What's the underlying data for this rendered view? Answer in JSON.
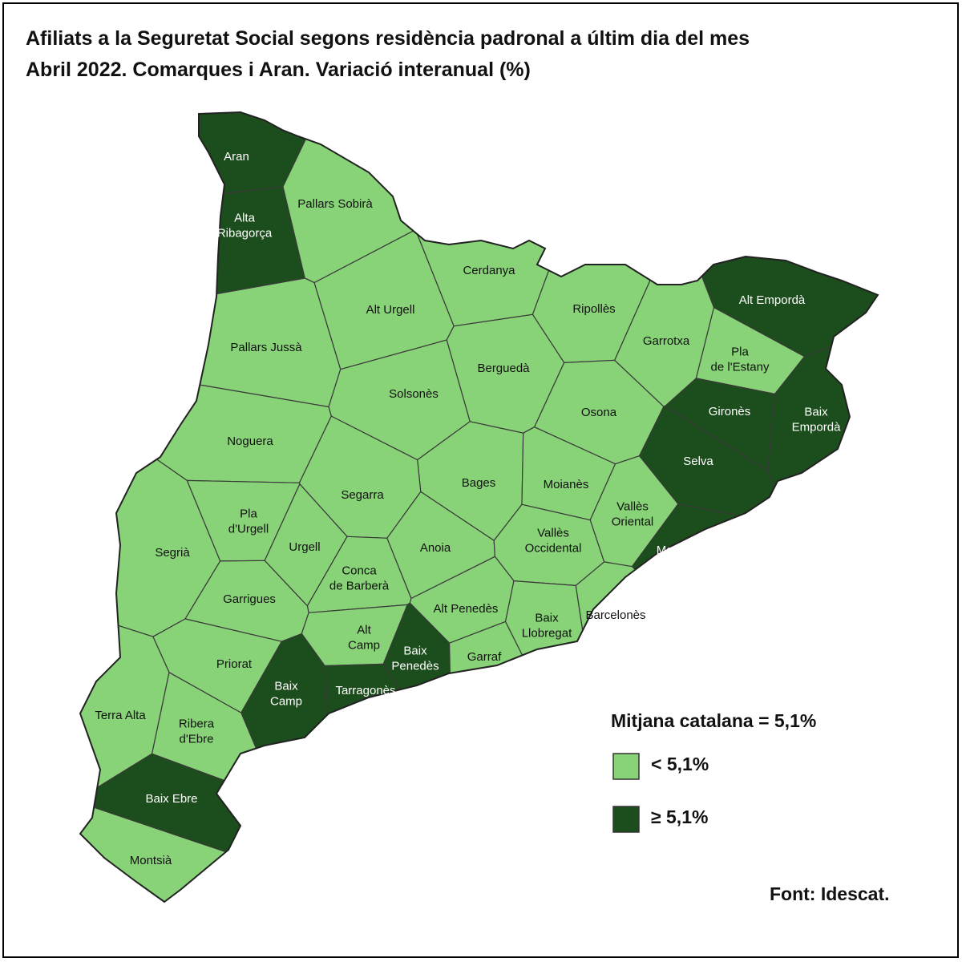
{
  "header": {
    "title_lines": [
      "Afiliats a la Seguretat Social segons residència padronal a últim dia del mes",
      "Abril 2022. Comarques i Aran. Variació interanual (%)"
    ]
  },
  "regions": [
    {
      "label": [
        "Aran"
      ],
      "color": "#1c4d1c"
    },
    {
      "label": [
        "Alta",
        "Ribagorça"
      ],
      "color": "#1c4d1c"
    },
    {
      "label": [
        "Pallars Sobirà"
      ],
      "color": "#88d377"
    },
    {
      "label": [
        "Cerdanya"
      ],
      "color": "#88d377"
    },
    {
      "label": [
        "Alt Urgell"
      ],
      "color": "#88d377"
    },
    {
      "label": [
        "Ripollès"
      ],
      "color": "#88d377"
    },
    {
      "label": [
        "Alt Empordà"
      ],
      "color": "#1c4d1c"
    },
    {
      "label": [
        "Pallars Jussà"
      ],
      "color": "#88d377"
    },
    {
      "label": [
        "Garrotxa"
      ],
      "color": "#88d377"
    },
    {
      "label": [
        "Pla",
        "de l'Estany"
      ],
      "color": "#88d377"
    },
    {
      "label": [
        "Berguedà"
      ],
      "color": "#88d377"
    },
    {
      "label": [
        "Solsonès"
      ],
      "color": "#88d377"
    },
    {
      "label": [
        "Gironès"
      ],
      "color": "#1c4d1c"
    },
    {
      "label": [
        "Baix",
        "Empordà"
      ],
      "color": "#1c4d1c"
    },
    {
      "label": [
        "Osona"
      ],
      "color": "#88d377"
    },
    {
      "label": [
        "Noguera"
      ],
      "color": "#88d377"
    },
    {
      "label": [
        "Selva"
      ],
      "color": "#1c4d1c"
    },
    {
      "label": [
        "Bages"
      ],
      "color": "#88d377"
    },
    {
      "label": [
        "Moianès"
      ],
      "color": "#88d377"
    },
    {
      "label": [
        "Segarra"
      ],
      "color": "#88d377"
    },
    {
      "label": [
        "Pla",
        "d'Urgell"
      ],
      "color": "#88d377"
    },
    {
      "label": [
        "Vallès",
        "Oriental"
      ],
      "color": "#88d377"
    },
    {
      "label": [
        "Segrià"
      ],
      "color": "#88d377"
    },
    {
      "label": [
        "Urgell"
      ],
      "color": "#88d377"
    },
    {
      "label": [
        "Anoia"
      ],
      "color": "#88d377"
    },
    {
      "label": [
        "Vallès",
        "Occidental"
      ],
      "color": "#88d377"
    },
    {
      "label": [
        "Maresme"
      ],
      "color": "#1c4d1c"
    },
    {
      "label": [
        "Conca",
        "de Barberà"
      ],
      "color": "#88d377"
    },
    {
      "label": [
        "Garrigues"
      ],
      "color": "#88d377"
    },
    {
      "label": [
        "Alt Penedès"
      ],
      "color": "#88d377"
    },
    {
      "label": [
        "Baix",
        "Llobregat"
      ],
      "color": "#88d377"
    },
    {
      "label": [
        "Barcelonès"
      ],
      "color": "#88d377"
    },
    {
      "label": [
        "Alt",
        "Camp"
      ],
      "color": "#88d377"
    },
    {
      "label": [
        "Baix",
        "Penedès"
      ],
      "color": "#1c4d1c"
    },
    {
      "label": [
        "Garraf"
      ],
      "color": "#88d377"
    },
    {
      "label": [
        "Priorat"
      ],
      "color": "#88d377"
    },
    {
      "label": [
        "Baix",
        "Camp"
      ],
      "color": "#1c4d1c"
    },
    {
      "label": [
        "Tarragonès"
      ],
      "color": "#1c4d1c"
    },
    {
      "label": [
        "Terra Alta"
      ],
      "color": "#88d377"
    },
    {
      "label": [
        "Ribera",
        "d'Ebre"
      ],
      "color": "#88d377"
    },
    {
      "label": [
        "Baix Ebre"
      ],
      "color": "#1c4d1c"
    },
    {
      "label": [
        "Montsià"
      ],
      "color": "#88d377"
    }
  ],
  "legend": {
    "title": "Mitjana catalana = 5,1%",
    "items": [
      {
        "label": "< 5,1%",
        "color": "#88d377"
      },
      {
        "label": "≥ 5,1%",
        "color": "#1c4d1c"
      }
    ]
  },
  "source": "Font: Idescat."
}
